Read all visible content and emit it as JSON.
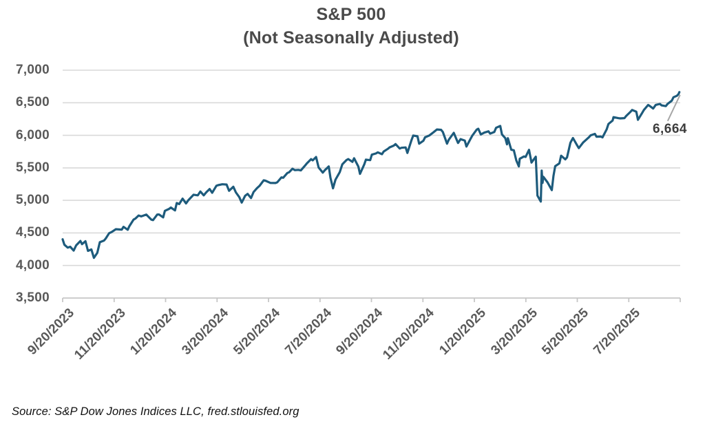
{
  "source_note": "Source: S&P Dow Jones Indices LLC, fred.stlouisfed.org",
  "colors": {
    "line": "#1d5b7c",
    "grid": "#d9d9d9",
    "axis": "#c6c6c6",
    "tick_label": "#595959",
    "title": "#4a4a4a",
    "annotation_text": "#3d3d3d",
    "leader": "#a6a6a6",
    "background": "#ffffff"
  },
  "chart_data": {
    "type": "line",
    "title": "S&P 500",
    "subtitle": "(Not Seasonally Adjusted)",
    "xlabel": "",
    "ylabel": "",
    "legend": "none",
    "grid": "horizontal",
    "ylim": [
      3500,
      7000
    ],
    "yticks": [
      3500,
      4000,
      4500,
      5000,
      5500,
      6000,
      6500,
      7000
    ],
    "x_start": "2023-09-20",
    "x_end": "2025-09-20",
    "xtick_labels": [
      "9/20/2023",
      "11/20/2023",
      "1/20/2024",
      "3/20/2024",
      "5/20/2024",
      "7/20/2024",
      "9/20/2024",
      "11/20/2024",
      "1/20/2025",
      "3/20/2025",
      "5/20/2025",
      "7/20/2025"
    ],
    "annotation": {
      "text": "6,664",
      "value": 6664,
      "date": "2025-09-19"
    },
    "series": [
      {
        "name": "S&P 500",
        "points": [
          [
            "2023-09-20",
            4402
          ],
          [
            "2023-09-22",
            4320
          ],
          [
            "2023-09-26",
            4274
          ],
          [
            "2023-09-29",
            4288
          ],
          [
            "2023-10-03",
            4229
          ],
          [
            "2023-10-06",
            4309
          ],
          [
            "2023-10-11",
            4377
          ],
          [
            "2023-10-13",
            4328
          ],
          [
            "2023-10-17",
            4373
          ],
          [
            "2023-10-20",
            4224
          ],
          [
            "2023-10-24",
            4247
          ],
          [
            "2023-10-27",
            4117
          ],
          [
            "2023-10-31",
            4194
          ],
          [
            "2023-11-03",
            4358
          ],
          [
            "2023-11-08",
            4383
          ],
          [
            "2023-11-10",
            4415
          ],
          [
            "2023-11-14",
            4496
          ],
          [
            "2023-11-17",
            4514
          ],
          [
            "2023-11-22",
            4557
          ],
          [
            "2023-11-29",
            4551
          ],
          [
            "2023-12-01",
            4594
          ],
          [
            "2023-12-06",
            4549
          ],
          [
            "2023-12-08",
            4604
          ],
          [
            "2023-12-13",
            4707
          ],
          [
            "2023-12-15",
            4719
          ],
          [
            "2023-12-19",
            4768
          ],
          [
            "2023-12-22",
            4754
          ],
          [
            "2023-12-28",
            4783
          ],
          [
            "2024-01-03",
            4704
          ],
          [
            "2024-01-05",
            4697
          ],
          [
            "2024-01-10",
            4783
          ],
          [
            "2024-01-12",
            4784
          ],
          [
            "2024-01-17",
            4739
          ],
          [
            "2024-01-19",
            4840
          ],
          [
            "2024-01-24",
            4869
          ],
          [
            "2024-01-26",
            4891
          ],
          [
            "2024-01-31",
            4846
          ],
          [
            "2024-02-02",
            4959
          ],
          [
            "2024-02-05",
            4943
          ],
          [
            "2024-02-09",
            5027
          ],
          [
            "2024-02-13",
            4953
          ],
          [
            "2024-02-16",
            5006
          ],
          [
            "2024-02-22",
            5087
          ],
          [
            "2024-02-27",
            5078
          ],
          [
            "2024-03-01",
            5137
          ],
          [
            "2024-03-05",
            5078
          ],
          [
            "2024-03-08",
            5124
          ],
          [
            "2024-03-12",
            5175
          ],
          [
            "2024-03-15",
            5117
          ],
          [
            "2024-03-20",
            5225
          ],
          [
            "2024-03-22",
            5234
          ],
          [
            "2024-03-27",
            5248
          ],
          [
            "2024-04-01",
            5244
          ],
          [
            "2024-04-04",
            5147
          ],
          [
            "2024-04-09",
            5210
          ],
          [
            "2024-04-12",
            5123
          ],
          [
            "2024-04-16",
            5051
          ],
          [
            "2024-04-19",
            4967
          ],
          [
            "2024-04-23",
            5071
          ],
          [
            "2024-04-26",
            5100
          ],
          [
            "2024-04-30",
            5036
          ],
          [
            "2024-05-03",
            5128
          ],
          [
            "2024-05-07",
            5188
          ],
          [
            "2024-05-10",
            5223
          ],
          [
            "2024-05-15",
            5308
          ],
          [
            "2024-05-17",
            5303
          ],
          [
            "2024-05-23",
            5268
          ],
          [
            "2024-05-29",
            5267
          ],
          [
            "2024-05-31",
            5277
          ],
          [
            "2024-06-05",
            5354
          ],
          [
            "2024-06-07",
            5347
          ],
          [
            "2024-06-12",
            5421
          ],
          [
            "2024-06-14",
            5432
          ],
          [
            "2024-06-18",
            5487
          ],
          [
            "2024-06-21",
            5465
          ],
          [
            "2024-06-25",
            5469
          ],
          [
            "2024-06-28",
            5460
          ],
          [
            "2024-07-03",
            5537
          ],
          [
            "2024-07-05",
            5567
          ],
          [
            "2024-07-10",
            5634
          ],
          [
            "2024-07-12",
            5615
          ],
          [
            "2024-07-16",
            5667
          ],
          [
            "2024-07-19",
            5505
          ],
          [
            "2024-07-24",
            5427
          ],
          [
            "2024-07-26",
            5459
          ],
          [
            "2024-07-31",
            5522
          ],
          [
            "2024-08-02",
            5346
          ],
          [
            "2024-08-05",
            5186
          ],
          [
            "2024-08-08",
            5319
          ],
          [
            "2024-08-13",
            5434
          ],
          [
            "2024-08-16",
            5554
          ],
          [
            "2024-08-21",
            5620
          ],
          [
            "2024-08-23",
            5635
          ],
          [
            "2024-08-28",
            5592
          ],
          [
            "2024-08-30",
            5648
          ],
          [
            "2024-09-04",
            5520
          ],
          [
            "2024-09-06",
            5408
          ],
          [
            "2024-09-11",
            5554
          ],
          [
            "2024-09-13",
            5626
          ],
          [
            "2024-09-18",
            5618
          ],
          [
            "2024-09-20",
            5703
          ],
          [
            "2024-09-25",
            5722
          ],
          [
            "2024-09-27",
            5738
          ],
          [
            "2024-10-02",
            5710
          ],
          [
            "2024-10-04",
            5751
          ],
          [
            "2024-10-09",
            5792
          ],
          [
            "2024-10-11",
            5815
          ],
          [
            "2024-10-16",
            5842
          ],
          [
            "2024-10-18",
            5865
          ],
          [
            "2024-10-23",
            5797
          ],
          [
            "2024-10-25",
            5808
          ],
          [
            "2024-10-30",
            5814
          ],
          [
            "2024-11-01",
            5729
          ],
          [
            "2024-11-06",
            5929
          ],
          [
            "2024-11-08",
            5996
          ],
          [
            "2024-11-13",
            5985
          ],
          [
            "2024-11-15",
            5871
          ],
          [
            "2024-11-20",
            5917
          ],
          [
            "2024-11-22",
            5969
          ],
          [
            "2024-11-27",
            5998
          ],
          [
            "2024-12-02",
            6047
          ],
          [
            "2024-12-06",
            6090
          ],
          [
            "2024-12-11",
            6084
          ],
          [
            "2024-12-13",
            6051
          ],
          [
            "2024-12-18",
            5872
          ],
          [
            "2024-12-20",
            5931
          ],
          [
            "2024-12-26",
            6038
          ],
          [
            "2024-12-31",
            5882
          ],
          [
            "2025-01-03",
            5942
          ],
          [
            "2025-01-08",
            5918
          ],
          [
            "2025-01-10",
            5827
          ],
          [
            "2025-01-15",
            5950
          ],
          [
            "2025-01-17",
            5997
          ],
          [
            "2025-01-22",
            6086
          ],
          [
            "2025-01-24",
            6101
          ],
          [
            "2025-01-27",
            6012
          ],
          [
            "2025-01-31",
            6041
          ],
          [
            "2025-02-05",
            6061
          ],
          [
            "2025-02-07",
            6026
          ],
          [
            "2025-02-12",
            6052
          ],
          [
            "2025-02-14",
            6115
          ],
          [
            "2025-02-19",
            6144
          ],
          [
            "2025-02-21",
            6013
          ],
          [
            "2025-02-25",
            5955
          ],
          [
            "2025-02-27",
            5861
          ],
          [
            "2025-02-28",
            5955
          ],
          [
            "2025-03-04",
            5778
          ],
          [
            "2025-03-07",
            5770
          ],
          [
            "2025-03-10",
            5615
          ],
          [
            "2025-03-13",
            5522
          ],
          [
            "2025-03-14",
            5639
          ],
          [
            "2025-03-19",
            5675
          ],
          [
            "2025-03-21",
            5668
          ],
          [
            "2025-03-25",
            5777
          ],
          [
            "2025-03-28",
            5581
          ],
          [
            "2025-04-02",
            5671
          ],
          [
            "2025-04-04",
            5074
          ],
          [
            "2025-04-08",
            4983
          ],
          [
            "2025-04-09",
            5457
          ],
          [
            "2025-04-10",
            5268
          ],
          [
            "2025-04-11",
            5363
          ],
          [
            "2025-04-16",
            5276
          ],
          [
            "2025-04-21",
            5158
          ],
          [
            "2025-04-23",
            5376
          ],
          [
            "2025-04-25",
            5525
          ],
          [
            "2025-04-30",
            5569
          ],
          [
            "2025-05-02",
            5687
          ],
          [
            "2025-05-07",
            5631
          ],
          [
            "2025-05-09",
            5660
          ],
          [
            "2025-05-13",
            5886
          ],
          [
            "2025-05-16",
            5958
          ],
          [
            "2025-05-21",
            5845
          ],
          [
            "2025-05-23",
            5803
          ],
          [
            "2025-05-28",
            5889
          ],
          [
            "2025-05-30",
            5912
          ],
          [
            "2025-06-04",
            5971
          ],
          [
            "2025-06-06",
            6000
          ],
          [
            "2025-06-11",
            6022
          ],
          [
            "2025-06-13",
            5977
          ],
          [
            "2025-06-18",
            5981
          ],
          [
            "2025-06-20",
            5968
          ],
          [
            "2025-06-25",
            6092
          ],
          [
            "2025-06-27",
            6173
          ],
          [
            "2025-07-02",
            6227
          ],
          [
            "2025-07-03",
            6279
          ],
          [
            "2025-07-09",
            6263
          ],
          [
            "2025-07-11",
            6260
          ],
          [
            "2025-07-16",
            6264
          ],
          [
            "2025-07-18",
            6297
          ],
          [
            "2025-07-23",
            6359
          ],
          [
            "2025-07-25",
            6389
          ],
          [
            "2025-07-30",
            6363
          ],
          [
            "2025-08-01",
            6238
          ],
          [
            "2025-08-06",
            6345
          ],
          [
            "2025-08-08",
            6389
          ],
          [
            "2025-08-13",
            6466
          ],
          [
            "2025-08-15",
            6450
          ],
          [
            "2025-08-19",
            6411
          ],
          [
            "2025-08-22",
            6467
          ],
          [
            "2025-08-27",
            6482
          ],
          [
            "2025-08-29",
            6460
          ],
          [
            "2025-09-03",
            6448
          ],
          [
            "2025-09-05",
            6482
          ],
          [
            "2025-09-10",
            6532
          ],
          [
            "2025-09-12",
            6584
          ],
          [
            "2025-09-16",
            6607
          ],
          [
            "2025-09-18",
            6632
          ],
          [
            "2025-09-19",
            6664
          ]
        ]
      }
    ]
  }
}
